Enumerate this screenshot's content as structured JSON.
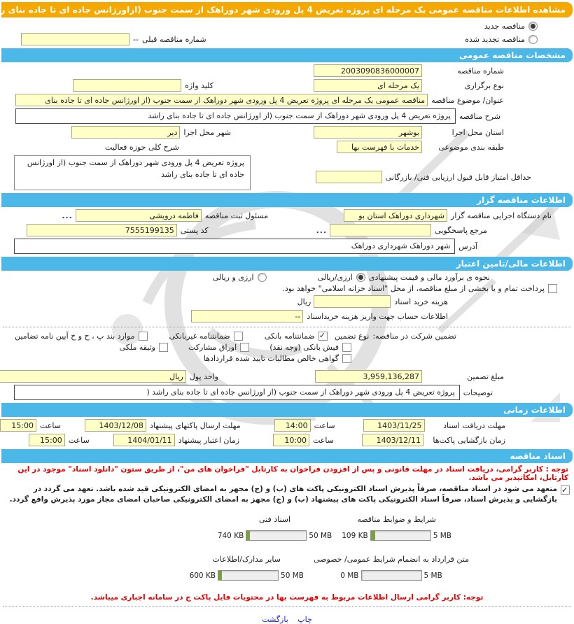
{
  "page": {
    "title": "مشاهده اطلاعات مناقصه عمومی یک مرحله ای پروژه تعریض 4 پل ورودی شهر دوراهک از سمت جنوب (ازاورژانس جاده ای تا جاده بنای راشد",
    "print_label": "چاپ",
    "back_label": "بازگشت",
    "ellipsis": "..."
  },
  "section_titles": {
    "general": "مشخصات مناقصه عمومی",
    "agency": "اطلاعات مناقصه گزار",
    "financial": "اطلاعات مالی/تامین اعتبار",
    "timing": "اطلاعات زمانی",
    "documents": "اسناد مناقصه"
  },
  "tender_state": {
    "new_label": "مناقصه جدید",
    "new_selected": true,
    "renew_label": "مناقصه تجدید شده",
    "renew_selected": false,
    "prev_number_label": "شماره مناقصه قبلی",
    "prev_number_dash": "--",
    "prev_number_value": ""
  },
  "general": {
    "number_label": "شماره مناقصه",
    "number": "2003090836000007",
    "process_label": "نوع برگزاری",
    "process": "یک مرحله ای",
    "keyword_label": "کلید واژه",
    "keyword": "",
    "title_label": "عنوان/ موضوع مناقصه",
    "title": "مناقصه عمومی یک مرحله ای پروژه تعریض 4 پل ورودی شهر دوراهک از سمت جنوب (از اورژانس جاده ای تا جاده بنای",
    "desc_label": "شرح مناقصه",
    "desc": "پروژه تعریض 4 پل ورودی شهر دوراهک از سمت جنوب (از اورژانس جاده ای تا جاده بنای راشد",
    "province_label": "استان محل اجرا",
    "province": "بوشهر",
    "city_label": "شهر محل اجرا",
    "city": "دیر",
    "category_label": "طبقه بندی موضوعی",
    "category": "خدمات با فهرست بها",
    "activity_label": "شرح کلی حوزه فعالیت",
    "activity": "پروژه تعریض 4 پل ورودی شهر دوراهک از سمت جنوب (از اورژانس جاده ای تا جاده بنای راشد",
    "min_score_label": "حداقل امتیاز قابل قبول ارزیابی فنی/ بازرگانی",
    "min_score": ""
  },
  "agency": {
    "name_label": "نام دستگاه اجرایی مناقصه گزار",
    "name": "شهرداری دوراهک استان بو",
    "registrar_label": "مسئول ثبت مناقصه",
    "registrar": "فاطمه درویشی",
    "contact_label": "مرجع پاسخگویی",
    "contact": "",
    "postal_label": "کد پستی",
    "postal": "7555199135",
    "address_label": "آدرس",
    "address": "شهر دوراهک شهرداری دوراهک"
  },
  "financial": {
    "estimate_label": "نحوه ی برآورد مالی و قیمت پیشنهادی",
    "currency_options": [
      {
        "label": "ارزی/ریالی",
        "selected": true
      },
      {
        "label": "ارزی و ریالی",
        "selected": false
      }
    ],
    "treasury": {
      "label": "پرداخت تمام و یا بخشی از مبلغ مناقصه، از محل \"اسناد خزانه اسلامی\" خواهد بود.",
      "checked": false
    },
    "doc_cost_label": "هزینه خرید اسناد",
    "doc_cost": "",
    "doc_cost_unit": "ریال",
    "account_label": "اطلاعات حساب جهت واریز هزینه خریداسناد",
    "account": "--",
    "guarantee": {
      "intro_label": "تضمین شرکت در مناقصه:",
      "type_label": "نوع تضمین",
      "types": [
        {
          "label": "ضمانتنامه بانکی",
          "checked": true
        },
        {
          "label": "ضمانتنامه غیربانکی",
          "checked": false
        },
        {
          "label": "موارد بند پ ، ح و خ آیین نامه تضامین",
          "checked": false
        },
        {
          "label": "فیش بانکی (وجه نقد)",
          "checked": false
        },
        {
          "label": "اوراق مشارکت",
          "checked": false
        },
        {
          "label": "وثیقه ملکی",
          "checked": false
        },
        {
          "label": "گواهی خالص مطالبات تایید شده قراردادها",
          "checked": false
        }
      ],
      "amount_label": "مبلغ تضمین",
      "amount": "3,959,136,287",
      "currency_label": "واحد پول",
      "currency": "ریال"
    },
    "notes_label": "توضیحات",
    "notes": "پروژه تعریض 4 پل ورودی شهر دوراهک از سمت جنوب (از اورژانس جاده ای تا جاده بنای راشد ("
  },
  "timing": {
    "hour_label": "ساعت",
    "rows": [
      {
        "label": "مهلت دریافت اسناد",
        "date": "1403/11/25",
        "time": "14:00"
      },
      {
        "label": "مهلت ارسال پاکتهای پیشنهاد",
        "date": "1403/12/08",
        "time": "15:00"
      },
      {
        "label": "زمان بازگشایی پاکت‌ها",
        "date": "1403/12/11",
        "time": "10:00"
      },
      {
        "label": "زمان اعتبار پیشنهاد",
        "date": "1404/01/11",
        "time": "15:00"
      }
    ]
  },
  "documents": {
    "note": "توجه : کاربر گرامی، دریافت اسناد در مهلت قانونی و پس از افزودن فراخوان به کارتابل \"فراخوان های من\"، از طریق ستون \"دانلود اسناد\" موجود در این کارتابل، امکانپذیر می باشد.",
    "commitment": "متعهد می شود در اسناد مناقصه، صرفاً پذیرش اسناد الکترونیکی پاکت های (ب) و (ج) مجهز به امضای الکترونیکی قید شده باشد. تعهد می گردد در بازگشایی و پذیرش اسناد، صرفاً اسناد الکترونیکی پاکت های پیشنهاد (ب) و (ج) مجهز به امضای الکترونیکی صاحبان امضای مجاز مورد پذیرش واقع گردد.",
    "commitment_checked": true,
    "uploads": [
      {
        "label": "شرایط و ضوابط مناقصه",
        "size": "109 KB",
        "max": "5 MB",
        "pct": 7
      },
      {
        "label": "اسناد فنی",
        "size": "740 KB",
        "max": "50 MB",
        "pct": 6
      },
      {
        "label": "متن قرارداد به انضمام شرایط عمومی/ خصوصی",
        "size": "0 MB",
        "max": "5 MB",
        "pct": 0
      },
      {
        "label": "سایر مدارک/اطلاعات",
        "size": "600 KB",
        "max": "50 MB",
        "pct": 6
      }
    ],
    "listing_note": "توجه: کاربر گرامی ارسال اطلاعات مربوط به فهرست بها در محتویات فایل پاکت ج در سامانه اجباری میباشد."
  }
}
